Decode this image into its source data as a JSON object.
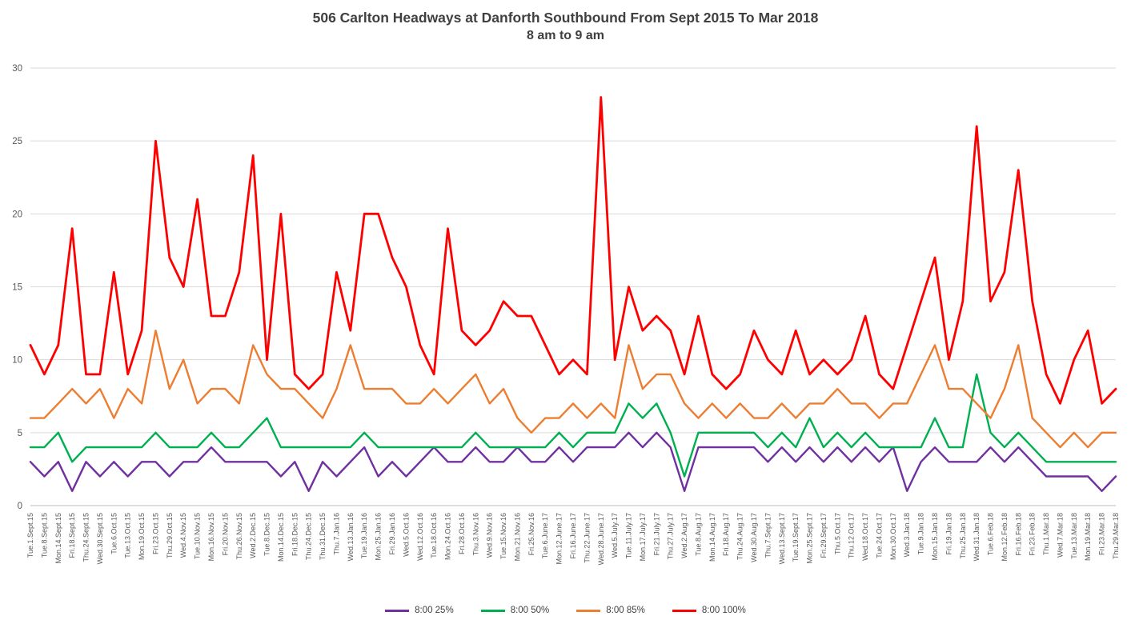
{
  "title": {
    "line1": "506 Carlton Headways at Danforth Southbound From Sept 2015 To Mar 2018",
    "line2": "8 am to 9 am"
  },
  "colors": {
    "purple": "#7030A0",
    "green": "#00B050",
    "orange": "#ED7D31",
    "red": "#FF0000",
    "gridline": "#D9D9D9",
    "axis_zero_line": "#BFBFBF",
    "axis_text": "#595959",
    "title_text": "#404040"
  },
  "chart_data": {
    "type": "line",
    "title": "506 Carlton Headways at Danforth Southbound From Sept 2015 To Mar 2018",
    "subtitle": "8 am to 9 am",
    "xlabel": "",
    "ylabel": "",
    "ylim": [
      0,
      30
    ],
    "yticks": [
      0,
      5,
      10,
      15,
      20,
      25,
      30
    ],
    "grid": "horizontal",
    "legend_position": "bottom",
    "categories": [
      "Tue.1.Sept.15",
      "Tue.8.Sept.15",
      "Mon.14.Sept.15",
      "Fri.18.Sept.15",
      "Thu.24.Sept.15",
      "Wed.30.Sept.15",
      "Tue.6.Oct.15",
      "Tue.13.Oct.15",
      "Mon.19.Oct.15",
      "Fri.23.Oct.15",
      "Thu.29.Oct.15",
      "Wed.4.Nov.15",
      "Tue.10.Nov.15",
      "Mon.16.Nov.15",
      "Fri.20.Nov.15",
      "Thu.26.Nov.15",
      "Wed.2.Dec.15",
      "Tue.8.Dec.15",
      "Mon.14.Dec.15",
      "Fri.18.Dec.15",
      "Thu.24.Dec.15",
      "Thu.31.Dec.15",
      "Thu.7.Jan.16",
      "Wed.13.Jan.16",
      "Tue.19.Jan.16",
      "Mon.25.Jan.16",
      "Fri.29.Jan.16",
      "Wed.5.Oct.16",
      "Wed.12.Oct.16",
      "Tue.18.Oct.16",
      "Mon.24.Oct.16",
      "Fri.28.Oct.16",
      "Thu.3.Nov.16",
      "Wed.9.Nov.16",
      "Tue.15.Nov.16",
      "Mon.21.Nov.16",
      "Fri.25.Nov.16",
      "Tue.6.June.17",
      "Mon.12.June.17",
      "Fri.16.June.17",
      "Thu.22.June.17",
      "Wed.28.June.17",
      "Wed.5.July.17",
      "Tue.11.July.17",
      "Mon.17.July.17",
      "Fri.21.July.17",
      "Thu.27.July.17",
      "Wed.2.Aug.17",
      "Tue.8.Aug.17",
      "Mon.14.Aug.17",
      "Fri.18.Aug.17",
      "Thu.24.Aug.17",
      "Wed.30.Aug.17",
      "Thu.7.Sept.17",
      "Wed.13.Sept.17",
      "Tue.19.Sept.17",
      "Mon.25.Sept.17",
      "Fri.29.Sept.17",
      "Thu.5.Oct.17",
      "Thu.12.Oct.17",
      "Wed.18.Oct.17",
      "Tue.24.Oct.17",
      "Mon.30.Oct.17",
      "Wed.3.Jan.18",
      "Tue.9.Jan.18",
      "Mon.15.Jan.18",
      "Fri.19.Jan.18",
      "Thu.25.Jan.18",
      "Wed.31.Jan.18",
      "Tue.6.Feb.18",
      "Mon.12.Feb.18",
      "Fri.16.Feb.18",
      "Fri.23.Feb.18",
      "Thu.1.Mar.18",
      "Wed.7.Mar.18",
      "Tue.13.Mar.18",
      "Mon.19.Mar.18",
      "Fri.23.Mar.18",
      "Thu.29.Mar.18"
    ],
    "series": [
      {
        "name": "8:00 25%",
        "color": "#7030A0",
        "stroke_width": 2.4,
        "values": [
          3,
          2,
          3,
          1,
          3,
          2,
          3,
          2,
          3,
          3,
          2,
          3,
          3,
          4,
          3,
          3,
          3,
          3,
          2,
          3,
          1,
          3,
          2,
          3,
          4,
          2,
          3,
          2,
          3,
          4,
          3,
          3,
          4,
          3,
          3,
          4,
          3,
          3,
          4,
          3,
          4,
          4,
          4,
          5,
          4,
          5,
          4,
          1,
          4,
          4,
          4,
          4,
          4,
          3,
          4,
          3,
          4,
          3,
          4,
          3,
          4,
          3,
          4,
          1,
          3,
          4,
          3,
          3,
          3,
          4,
          3,
          4,
          3,
          2,
          2,
          2,
          2,
          1,
          2
        ]
      },
      {
        "name": "8:00 50%",
        "color": "#00B050",
        "stroke_width": 2.4,
        "values": [
          4,
          4,
          5,
          3,
          4,
          4,
          4,
          4,
          4,
          5,
          4,
          4,
          4,
          5,
          4,
          4,
          5,
          6,
          4,
          4,
          4,
          4,
          4,
          4,
          5,
          4,
          4,
          4,
          4,
          4,
          4,
          4,
          5,
          4,
          4,
          4,
          4,
          4,
          5,
          4,
          5,
          5,
          5,
          7,
          6,
          7,
          5,
          2,
          5,
          5,
          5,
          5,
          5,
          4,
          5,
          4,
          6,
          4,
          5,
          4,
          5,
          4,
          4,
          4,
          4,
          6,
          4,
          4,
          9,
          5,
          4,
          5,
          4,
          3,
          3,
          3,
          3,
          3,
          3
        ]
      },
      {
        "name": "8:00 85%",
        "color": "#ED7D31",
        "stroke_width": 2.4,
        "values": [
          6,
          6,
          7,
          8,
          7,
          8,
          6,
          8,
          7,
          12,
          8,
          10,
          7,
          8,
          8,
          7,
          11,
          9,
          8,
          8,
          7,
          6,
          8,
          11,
          8,
          8,
          8,
          7,
          7,
          8,
          7,
          8,
          9,
          7,
          8,
          6,
          5,
          6,
          6,
          7,
          6,
          7,
          6,
          11,
          8,
          9,
          9,
          7,
          6,
          7,
          6,
          7,
          6,
          6,
          7,
          6,
          7,
          7,
          8,
          7,
          7,
          6,
          7,
          7,
          9,
          11,
          8,
          8,
          7,
          6,
          8,
          11,
          6,
          5,
          4,
          5,
          4,
          5,
          5
        ]
      },
      {
        "name": "8:00 100%",
        "color": "#FF0000",
        "stroke_width": 2.8,
        "values": [
          11,
          9,
          11,
          19,
          9,
          9,
          16,
          9,
          12,
          25,
          17,
          15,
          21,
          13,
          13,
          16,
          24,
          10,
          20,
          9,
          8,
          9,
          16,
          12,
          20,
          20,
          17,
          15,
          11,
          9,
          19,
          12,
          11,
          12,
          14,
          13,
          13,
          11,
          9,
          10,
          9,
          28,
          10,
          15,
          12,
          13,
          12,
          9,
          13,
          9,
          8,
          9,
          12,
          10,
          9,
          12,
          9,
          10,
          9,
          10,
          13,
          9,
          8,
          11,
          14,
          17,
          10,
          14,
          26,
          14,
          16,
          23,
          14,
          9,
          7,
          10,
          12,
          7,
          8
        ]
      }
    ]
  }
}
